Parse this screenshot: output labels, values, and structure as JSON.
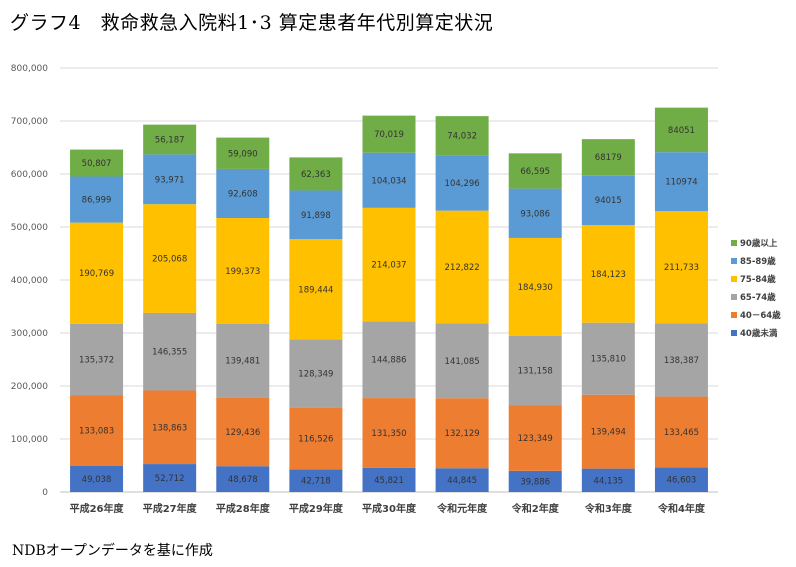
{
  "title": "グラフ4　救命救急入院料1･3 算定患者年代別算定状況",
  "source": "NDBオープンデータを基に作成",
  "chart_data": {
    "type": "bar",
    "stacked": true,
    "categories": [
      "平成26年度",
      "平成27年度",
      "平成28年度",
      "平成29年度",
      "平成30年度",
      "令和元年度",
      "令和2年度",
      "令和3年度",
      "令和4年度"
    ],
    "yticks": [
      "0",
      "100,000",
      "200,000",
      "300,000",
      "400,000",
      "500,000",
      "600,000",
      "700,000",
      "800,000"
    ],
    "ylim": [
      0,
      800000
    ],
    "legend_position": "right",
    "series": [
      {
        "name": "40歳未満",
        "color": "#4472C4",
        "values": [
          49038,
          52712,
          48678,
          42718,
          45821,
          44845,
          39886,
          44135,
          46603
        ],
        "labels": [
          "49,038",
          "52,712",
          "48,678",
          "42,718",
          "45,821",
          "44,845",
          "39,886",
          "44,135",
          "46,603"
        ]
      },
      {
        "name": "40－64歳",
        "color": "#ED7D31",
        "values": [
          133083,
          138863,
          129436,
          116526,
          131350,
          132129,
          123349,
          139494,
          133465
        ],
        "labels": [
          "133,083",
          "138,863",
          "129,436",
          "116,526",
          "131,350",
          "132,129",
          "123,349",
          "139,494",
          "133,465"
        ]
      },
      {
        "name": "65-74歳",
        "color": "#A5A5A5",
        "values": [
          135372,
          146355,
          139481,
          128349,
          144886,
          141085,
          131158,
          135810,
          138387
        ],
        "labels": [
          "135,372",
          "146,355",
          "139,481",
          "128,349",
          "144,886",
          "141,085",
          "131,158",
          "135,810",
          "138,387"
        ]
      },
      {
        "name": "75-84歳",
        "color": "#FFC000",
        "values": [
          190769,
          205068,
          199373,
          189444,
          214037,
          212822,
          184930,
          184123,
          211733
        ],
        "labels": [
          "190,769",
          "205,068",
          "199,373",
          "189,444",
          "214,037",
          "212,822",
          "184,930",
          "184,123",
          "211,733"
        ]
      },
      {
        "name": "85-89歳",
        "color": "#5B9BD5",
        "values": [
          86999,
          93971,
          92608,
          91898,
          104034,
          104296,
          93086,
          94015,
          110974
        ],
        "labels": [
          "86,999",
          "93,971",
          "92,608",
          "91,898",
          "104,034",
          "104,296",
          "93,086",
          "94015",
          "110974"
        ]
      },
      {
        "name": "90歳以上",
        "color": "#70AD47",
        "values": [
          50807,
          56187,
          59090,
          62363,
          70019,
          74032,
          66595,
          68179,
          84051
        ],
        "labels": [
          "50,807",
          "56,187",
          "59,090",
          "62,363",
          "70,019",
          "74,032",
          "66,595",
          "68179",
          "84051"
        ]
      }
    ]
  }
}
